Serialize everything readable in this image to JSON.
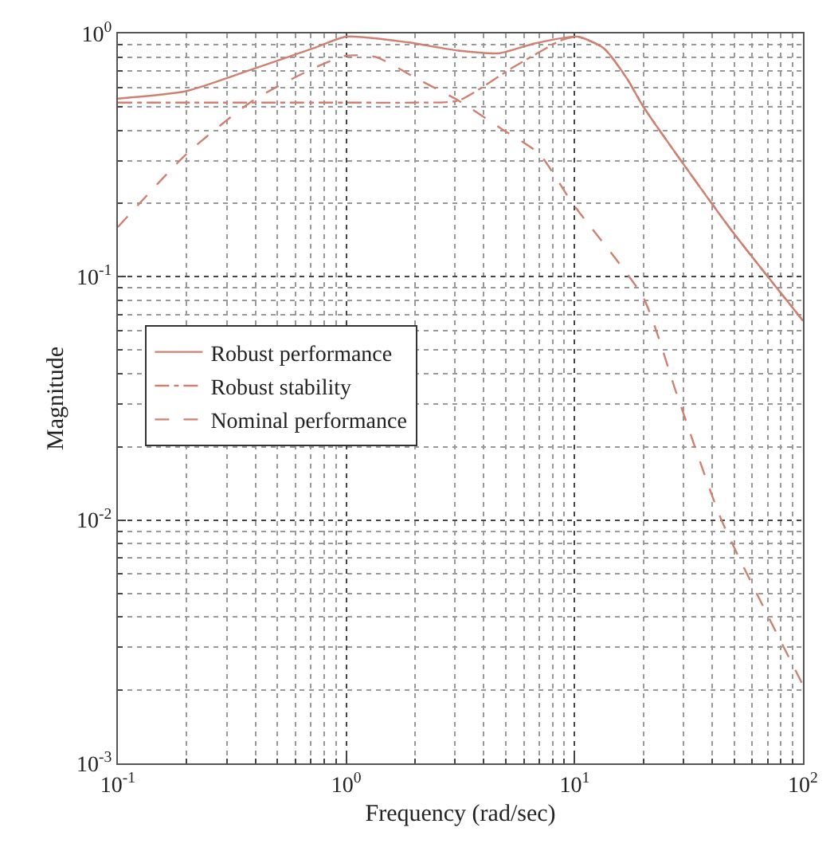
{
  "chart_data": {
    "type": "line",
    "xlabel": "Frequency (rad/sec)",
    "ylabel": "Magnitude",
    "log": "xy",
    "grid": true,
    "legend": "left",
    "xlim": [
      0.1,
      100
    ],
    "ylim": [
      0.001,
      1
    ],
    "xticks": [
      {
        "value": 0.1,
        "label": "10$^{-1}$"
      },
      {
        "value": 1,
        "label": "10$^{0}$"
      },
      {
        "value": 10,
        "label": "10$^{1}$"
      },
      {
        "value": 100,
        "label": "10$^{2}$"
      }
    ],
    "yticks": [
      {
        "value": 0.001,
        "label": "10$^{-3}$"
      },
      {
        "value": 0.01,
        "label": "10$^{-2}$"
      },
      {
        "value": 0.1,
        "label": "10$^{-1}$"
      },
      {
        "value": 1,
        "label": "10$^{0}$"
      }
    ],
    "series": [
      {
        "name": "Robust performance",
        "color": "#d08070",
        "line_style": "solid",
        "x": [
          0.1,
          0.2,
          0.4,
          0.72,
          1,
          1.85,
          3.1,
          4.7,
          6.7,
          10.3,
          13.4,
          17,
          20,
          30,
          50,
          100
        ],
        "values": [
          0.54,
          0.58,
          0.72,
          0.87,
          0.97,
          0.92,
          0.85,
          0.83,
          0.91,
          0.97,
          0.87,
          0.65,
          0.5,
          0.29,
          0.15,
          0.066
        ]
      },
      {
        "name": "Robust stability",
        "color": "#d08070",
        "line_style": "dashdot",
        "x": [
          0.1,
          0.5,
          1,
          2,
          3.1,
          5.3,
          8.8,
          10.3,
          13.4,
          17,
          20,
          30,
          50,
          100
        ],
        "values": [
          0.52,
          0.52,
          0.52,
          0.52,
          0.53,
          0.72,
          0.94,
          0.97,
          0.87,
          0.65,
          0.5,
          0.29,
          0.15,
          0.066
        ]
      },
      {
        "name": "Nominal performance",
        "color": "#d08070",
        "line_style": "dashed",
        "x": [
          0.1,
          0.2,
          0.39,
          0.72,
          1,
          1.35,
          2.05,
          3.1,
          4.7,
          7,
          9.8,
          20,
          28,
          44,
          100
        ],
        "values": [
          0.16,
          0.32,
          0.53,
          0.72,
          0.81,
          0.8,
          0.65,
          0.53,
          0.41,
          0.32,
          0.2,
          0.082,
          0.033,
          0.01,
          0.0021
        ]
      }
    ]
  }
}
